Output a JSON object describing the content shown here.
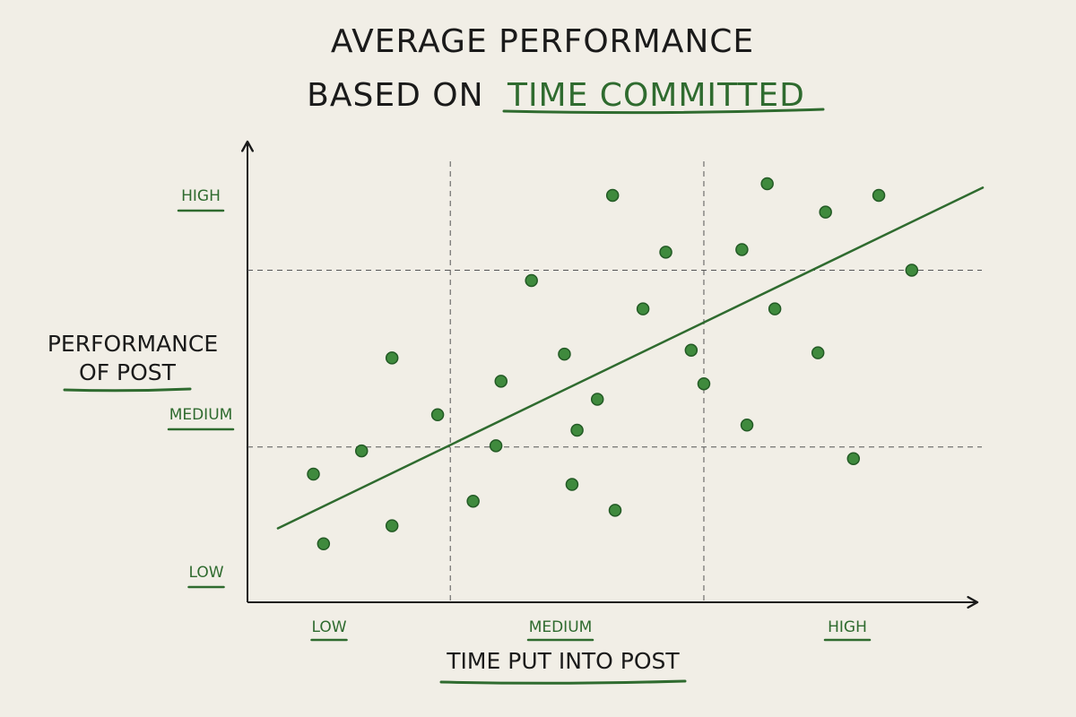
{
  "chart_data": {
    "type": "scatter",
    "title_line1": "AVERAGE PERFORMANCE",
    "title_line2_prefix": "BASED ON",
    "title_line2_highlight": "TIME COMMITTED",
    "xlabel": "TIME PUT INTO POST",
    "ylabel_line1": "PERFORMANCE",
    "ylabel_line2": "OF POST",
    "x_ticks": [
      {
        "label": "LOW",
        "value": 0.5
      },
      {
        "label": "MEDIUM",
        "value": 1.5
      },
      {
        "label": "HIGH",
        "value": 2.5
      }
    ],
    "y_ticks": [
      {
        "label": "LOW",
        "value": 0.1
      },
      {
        "label": "MEDIUM",
        "value": 1.25
      },
      {
        "label": "HIGH",
        "value": 2.8
      }
    ],
    "xlim": [
      0,
      2.9
    ],
    "ylim": [
      0,
      3
    ],
    "x_dividers": [
      0.8,
      1.8
    ],
    "y_dividers": [
      0.96,
      2.33
    ],
    "points": [
      {
        "x": 0.26,
        "y": 0.75
      },
      {
        "x": 0.3,
        "y": 0.21
      },
      {
        "x": 0.45,
        "y": 0.93
      },
      {
        "x": 0.57,
        "y": 0.35
      },
      {
        "x": 0.57,
        "y": 1.65
      },
      {
        "x": 0.75,
        "y": 1.21
      },
      {
        "x": 0.89,
        "y": 0.54
      },
      {
        "x": 0.98,
        "y": 0.97
      },
      {
        "x": 1.0,
        "y": 1.47
      },
      {
        "x": 1.12,
        "y": 2.25
      },
      {
        "x": 1.25,
        "y": 1.68
      },
      {
        "x": 1.28,
        "y": 0.67
      },
      {
        "x": 1.3,
        "y": 1.09
      },
      {
        "x": 1.38,
        "y": 1.33
      },
      {
        "x": 1.44,
        "y": 2.91
      },
      {
        "x": 1.45,
        "y": 0.47
      },
      {
        "x": 1.56,
        "y": 2.03
      },
      {
        "x": 1.65,
        "y": 2.47
      },
      {
        "x": 1.75,
        "y": 1.71
      },
      {
        "x": 1.8,
        "y": 1.45
      },
      {
        "x": 1.95,
        "y": 2.49
      },
      {
        "x": 1.97,
        "y": 1.13
      },
      {
        "x": 2.05,
        "y": 3.0
      },
      {
        "x": 2.08,
        "y": 2.03
      },
      {
        "x": 2.25,
        "y": 1.69
      },
      {
        "x": 2.28,
        "y": 2.78
      },
      {
        "x": 2.39,
        "y": 0.87
      },
      {
        "x": 2.49,
        "y": 2.91
      },
      {
        "x": 2.62,
        "y": 2.33
      }
    ],
    "trendline": {
      "x": [
        0.12,
        2.9
      ],
      "y": [
        0.33,
        2.97
      ]
    },
    "grid": false,
    "colors": {
      "background": "#f1eee6",
      "accent": "#2f6b2f",
      "point_fill": "#3f8a3d",
      "point_stroke": "#235a25",
      "ink": "#1a1a1a"
    }
  }
}
